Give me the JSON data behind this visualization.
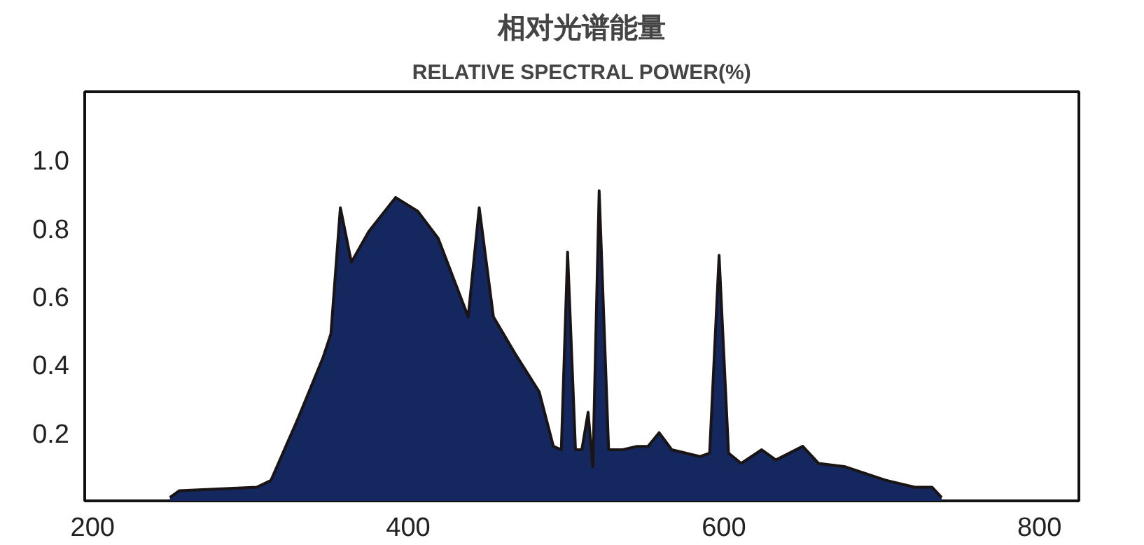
{
  "chart_data": {
    "type": "area",
    "title": "相对光谱能量",
    "subtitle": "RELATIVE SPECTRAL POWER(%)",
    "x": [
      249,
      255,
      304,
      313,
      330,
      346,
      351,
      357,
      364,
      375,
      392,
      406,
      419,
      438,
      445,
      454,
      468,
      483,
      492,
      497,
      501,
      506,
      510,
      514,
      517,
      521,
      527,
      536,
      545,
      552,
      559,
      567,
      585,
      591,
      597,
      603,
      611,
      624,
      633,
      650,
      660,
      677,
      703,
      721,
      732,
      738
    ],
    "series": [
      {
        "color": "#14275e",
        "values": [
          0.01,
          0.03,
          0.04,
          0.06,
          0.24,
          0.42,
          0.49,
          0.86,
          0.7,
          0.79,
          0.89,
          0.85,
          0.77,
          0.54,
          0.86,
          0.54,
          0.43,
          0.32,
          0.16,
          0.15,
          0.73,
          0.15,
          0.15,
          0.26,
          0.1,
          0.91,
          0.15,
          0.15,
          0.16,
          0.16,
          0.2,
          0.15,
          0.13,
          0.14,
          0.72,
          0.14,
          0.11,
          0.15,
          0.12,
          0.16,
          0.11,
          0.1,
          0.06,
          0.04,
          0.04,
          0.01
        ]
      }
    ],
    "xlim": [
      195,
      825
    ],
    "ylim": [
      0,
      1.2
    ],
    "xticks": [
      200,
      400,
      600,
      800
    ],
    "yticks": [
      0.2,
      0.4,
      0.6,
      0.8,
      {
        "value": 1,
        "label": "1.0"
      }
    ],
    "grid": false,
    "marker": "none",
    "line_style": "solid"
  }
}
